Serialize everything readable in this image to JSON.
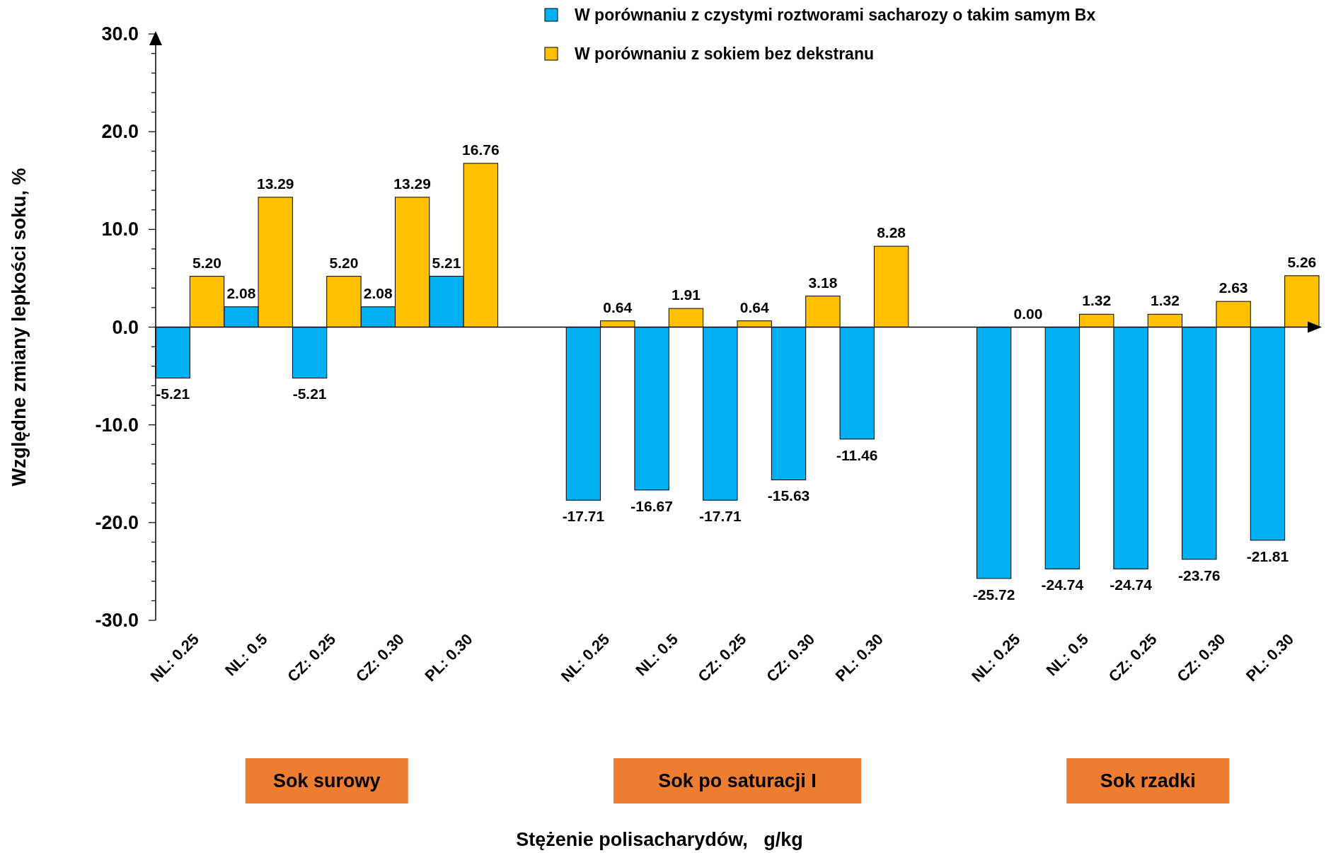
{
  "chart_data": {
    "type": "bar",
    "ylabel": "Względne zmiany lepkości soku,  %",
    "categories": [
      "NL: 0.25",
      "NL: 0.5",
      "CZ: 0.25",
      "CZ: 0.30",
      "PL: 0.30",
      null,
      "NL: 0.25",
      "NL: 0.5",
      "CZ: 0.25",
      "CZ: 0.30",
      "PL: 0.30",
      null,
      "NL: 0.25",
      "NL: 0.5",
      "CZ: 0.25",
      "CZ: 0.30",
      "PL: 0.30"
    ],
    "series": [
      {
        "name": "W porównaniu z czystymi roztworami sacharozy o takim samym Bx",
        "color": "#00b0f0",
        "values": [
          -5.21,
          2.08,
          -5.21,
          2.08,
          5.21,
          null,
          -17.71,
          -16.67,
          -17.71,
          -15.63,
          -11.46,
          null,
          -25.72,
          -24.74,
          -24.74,
          -23.76,
          -21.81
        ],
        "value_labels": [
          "-5.21",
          "2.08",
          "-5.21",
          "2.08",
          "5.21",
          null,
          "-17.71",
          "-16.67",
          "-17.71",
          "-15.63",
          "-11.46",
          null,
          "-25.72",
          "-24.74",
          "-24.74",
          "-23.76",
          "-21.81"
        ]
      },
      {
        "name": "W porównaniu z sokiem bez dekstranu",
        "color": "#ffc000",
        "values": [
          5.2,
          13.29,
          5.2,
          13.29,
          16.76,
          null,
          0.64,
          1.91,
          0.64,
          3.18,
          8.28,
          null,
          0,
          1.32,
          1.32,
          2.63,
          5.26
        ],
        "value_labels": [
          "5.20",
          "13.29",
          "5.20",
          "13.29",
          "16.76",
          null,
          "0.64",
          "1.91",
          "0.64",
          "3.18",
          "8.28",
          null,
          "0.00",
          "1.32",
          "1.32",
          "2.63",
          "5.26"
        ]
      }
    ],
    "ylim": [
      -30,
      30
    ],
    "yticks": [
      {
        "value": -30,
        "label": "-30.0"
      },
      {
        "value": -28,
        "label": null
      },
      {
        "value": -26,
        "label": null
      },
      {
        "value": -24,
        "label": null
      },
      {
        "value": -22,
        "label": null
      },
      {
        "value": -20,
        "label": "-20.0"
      },
      {
        "value": -18,
        "label": null
      },
      {
        "value": -16,
        "label": null
      },
      {
        "value": -14,
        "label": null
      },
      {
        "value": -12,
        "label": null
      },
      {
        "value": -10,
        "label": "-10.0"
      },
      {
        "value": -8,
        "label": null
      },
      {
        "value": -6,
        "label": null
      },
      {
        "value": -4,
        "label": null
      },
      {
        "value": -2,
        "label": null
      },
      {
        "value": 0,
        "label": "0.0"
      },
      {
        "value": 2,
        "label": null
      },
      {
        "value": 4,
        "label": null
      },
      {
        "value": 6,
        "label": null
      },
      {
        "value": 8,
        "label": null
      },
      {
        "value": 10,
        "label": "10.0"
      },
      {
        "value": 12,
        "label": null
      },
      {
        "value": 14,
        "label": null
      },
      {
        "value": 16,
        "label": null
      },
      {
        "value": 18,
        "label": null
      },
      {
        "value": 20,
        "label": "20.0"
      },
      {
        "value": 22,
        "label": null
      },
      {
        "value": 24,
        "label": null
      },
      {
        "value": 26,
        "label": null
      },
      {
        "value": 28,
        "label": null
      },
      {
        "value": 30,
        "label": "30.0"
      }
    ],
    "annotations": [
      "Sok surowy",
      "Sok po saturacji I",
      "Sok rzadki",
      "Stężenie polisacharydów,   g/kg"
    ],
    "legend": "top"
  }
}
